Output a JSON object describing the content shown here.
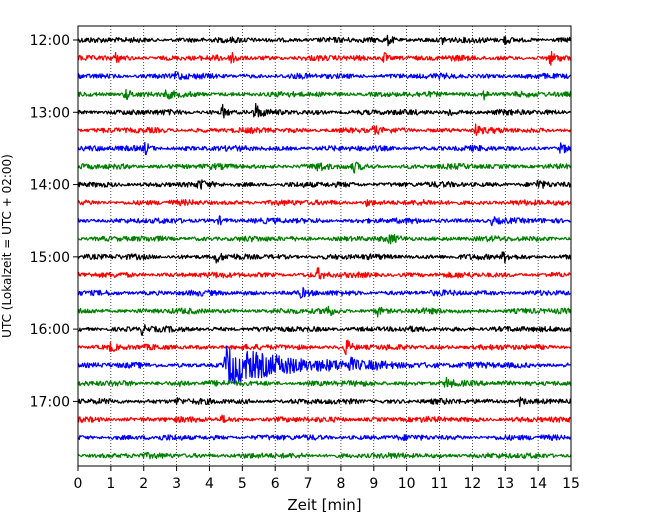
{
  "chart_data": {
    "type": "line",
    "title": "",
    "xlabel": "Zeit  [min]",
    "ylabel": "UTC (Lokalzeit = UTC + 02:00)",
    "xlim": [
      0,
      15
    ],
    "xticks": [
      0,
      1,
      2,
      3,
      4,
      5,
      6,
      7,
      8,
      9,
      10,
      11,
      12,
      13,
      14,
      15
    ],
    "ytick_labels": [
      "12:00",
      "13:00",
      "14:00",
      "15:00",
      "16:00",
      "17:00"
    ],
    "grid_x": true,
    "grid_y": false,
    "trace_interval_min": 15,
    "trace_colors": [
      "#000000",
      "#ff0000",
      "#0000ff",
      "#008000"
    ],
    "traces": [
      {
        "start": "12:00",
        "color": "#000000",
        "events": [
          {
            "t": 9.45,
            "amp": 1.6
          },
          {
            "t": 11.1,
            "amp": 1.3
          },
          {
            "t": 13.0,
            "amp": 1.3
          }
        ]
      },
      {
        "start": "12:15",
        "color": "#ff0000",
        "events": [
          {
            "t": 1.15,
            "amp": 1.2
          },
          {
            "t": 4.7,
            "amp": 2.2
          },
          {
            "t": 9.3,
            "amp": 2.0
          },
          {
            "t": 14.35,
            "amp": 2.0
          }
        ]
      },
      {
        "start": "12:30",
        "color": "#0000ff",
        "events": [
          {
            "t": 3.0,
            "amp": 1.6
          }
        ]
      },
      {
        "start": "12:45",
        "color": "#008000",
        "events": [
          {
            "t": 1.45,
            "amp": 1.8
          },
          {
            "t": 2.7,
            "amp": 1.4
          },
          {
            "t": 12.35,
            "amp": 1.3
          }
        ]
      },
      {
        "start": "13:00",
        "color": "#000000",
        "events": [
          {
            "t": 4.4,
            "amp": 2.0
          },
          {
            "t": 5.4,
            "amp": 2.6
          },
          {
            "t": 11.3,
            "amp": 1.3
          }
        ]
      },
      {
        "start": "13:15",
        "color": "#ff0000",
        "events": [
          {
            "t": 9.0,
            "amp": 1.2
          },
          {
            "t": 12.1,
            "amp": 1.4
          }
        ]
      },
      {
        "start": "13:30",
        "color": "#0000ff",
        "events": [
          {
            "t": 2.05,
            "amp": 1.8
          },
          {
            "t": 14.7,
            "amp": 1.6
          }
        ]
      },
      {
        "start": "13:45",
        "color": "#008000",
        "events": [
          {
            "t": 7.3,
            "amp": 1.6
          },
          {
            "t": 8.4,
            "amp": 1.3
          }
        ]
      },
      {
        "start": "14:00",
        "color": "#000000",
        "events": [
          {
            "t": 3.7,
            "amp": 1.3
          },
          {
            "t": 14.0,
            "amp": 1.2
          }
        ]
      },
      {
        "start": "14:15",
        "color": "#ff0000",
        "events": [
          {
            "t": 8.8,
            "amp": 1.0
          }
        ]
      },
      {
        "start": "14:30",
        "color": "#0000ff",
        "events": [
          {
            "t": 4.3,
            "amp": 1.0
          },
          {
            "t": 12.6,
            "amp": 1.0
          }
        ]
      },
      {
        "start": "14:45",
        "color": "#008000",
        "events": [
          {
            "t": 9.5,
            "amp": 1.2
          }
        ]
      },
      {
        "start": "15:00",
        "color": "#000000",
        "events": [
          {
            "t": 4.2,
            "amp": 1.7
          },
          {
            "t": 12.95,
            "amp": 1.8
          }
        ]
      },
      {
        "start": "15:15",
        "color": "#ff0000",
        "events": [
          {
            "t": 7.3,
            "amp": 1.7
          }
        ]
      },
      {
        "start": "15:30",
        "color": "#0000ff",
        "events": [
          {
            "t": 6.8,
            "amp": 1.3
          }
        ]
      },
      {
        "start": "15:45",
        "color": "#008000",
        "events": [
          {
            "t": 7.55,
            "amp": 2.2
          },
          {
            "t": 9.1,
            "amp": 1.5
          }
        ]
      },
      {
        "start": "16:00",
        "color": "#000000",
        "events": [
          {
            "t": 1.95,
            "amp": 1.5
          },
          {
            "t": 14.8,
            "amp": 1.2
          }
        ]
      },
      {
        "start": "16:15",
        "color": "#ff0000",
        "events": [
          {
            "t": 1.0,
            "amp": 1.3
          },
          {
            "t": 8.15,
            "amp": 2.6
          }
        ]
      },
      {
        "start": "16:30",
        "color": "#0000ff",
        "events": [
          {
            "t": 4.5,
            "amp": 5.5,
            "decay": 2.0
          },
          {
            "t": 8.3,
            "amp": 1.3
          }
        ]
      },
      {
        "start": "16:45",
        "color": "#008000",
        "events": [
          {
            "t": 3.1,
            "amp": 1.2
          },
          {
            "t": 11.2,
            "amp": 1.5
          },
          {
            "t": 13.6,
            "amp": 1.2
          }
        ]
      },
      {
        "start": "17:00",
        "color": "#000000",
        "events": [
          {
            "t": 3.0,
            "amp": 1.3
          },
          {
            "t": 13.45,
            "amp": 1.4
          }
        ]
      },
      {
        "start": "17:15",
        "color": "#ff0000",
        "events": [
          {
            "t": 4.4,
            "amp": 1.0
          }
        ]
      },
      {
        "start": "17:30",
        "color": "#0000ff",
        "events": []
      },
      {
        "start": "17:45",
        "color": "#008000",
        "events": []
      }
    ]
  }
}
